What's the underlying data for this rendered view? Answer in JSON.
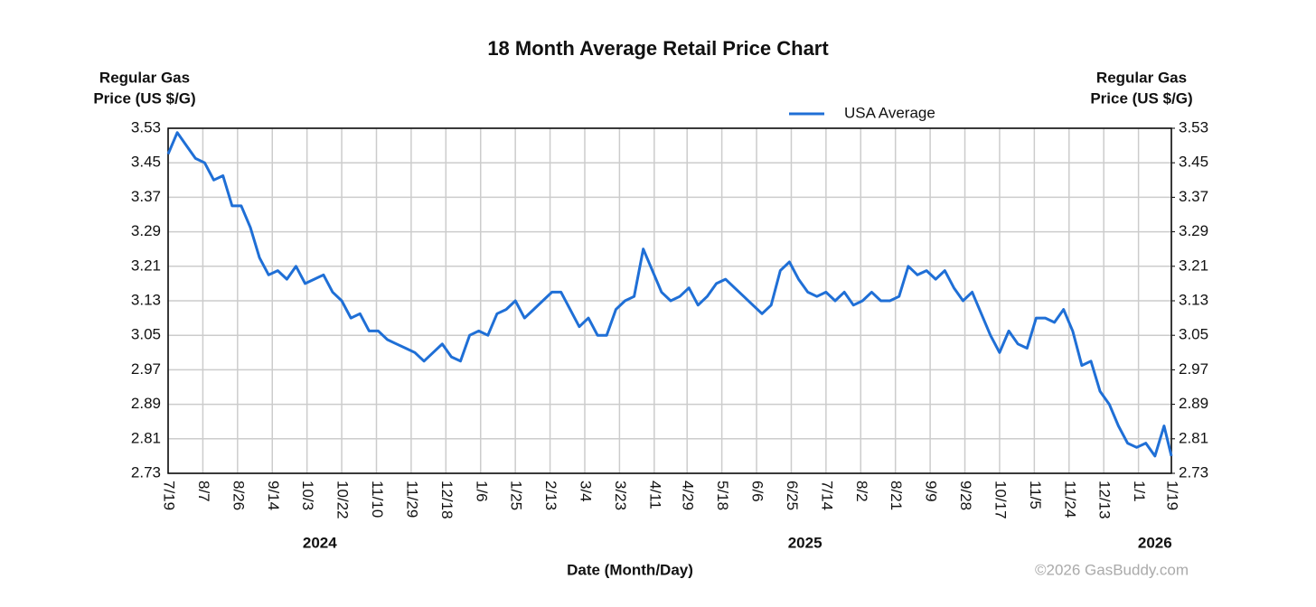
{
  "chart_data": {
    "type": "line",
    "title": "18 Month Average Retail Price Chart",
    "y_label": [
      "Regular Gas",
      "Price (US $/G)"
    ],
    "y2_label": [
      "Regular Gas",
      "Price (US $/G)"
    ],
    "x_label": "Date (Month/Day)",
    "x_year_labels": [
      "2024",
      "2025",
      "2026"
    ],
    "credit": "©2026 GasBuddy.com",
    "legend": "top",
    "grid": true,
    "x": [
      "2024-07-19",
      "2024-07-24",
      "2024-07-29",
      "2024-08-03",
      "2024-08-08",
      "2024-08-13",
      "2024-08-18",
      "2024-08-23",
      "2024-08-28",
      "2024-09-02",
      "2024-09-07",
      "2024-09-12",
      "2024-09-17",
      "2024-09-22",
      "2024-09-27",
      "2024-10-02",
      "2024-10-07",
      "2024-10-12",
      "2024-10-17",
      "2024-10-22",
      "2024-10-27",
      "2024-11-01",
      "2024-11-06",
      "2024-11-11",
      "2024-11-16",
      "2024-11-21",
      "2024-11-26",
      "2024-12-01",
      "2024-12-06",
      "2024-12-11",
      "2024-12-16",
      "2024-12-21",
      "2024-12-26",
      "2024-12-31",
      "2025-01-05",
      "2025-01-10",
      "2025-01-15",
      "2025-01-20",
      "2025-01-25",
      "2025-01-30",
      "2025-02-04",
      "2025-02-09",
      "2025-02-14",
      "2025-02-19",
      "2025-02-24",
      "2025-03-01",
      "2025-03-06",
      "2025-03-11",
      "2025-03-16",
      "2025-03-21",
      "2025-03-26",
      "2025-03-31",
      "2025-04-05",
      "2025-04-10",
      "2025-04-15",
      "2025-04-20",
      "2025-04-25",
      "2025-04-30",
      "2025-05-05",
      "2025-05-10",
      "2025-05-15",
      "2025-05-20",
      "2025-05-25",
      "2025-05-30",
      "2025-06-04",
      "2025-06-09",
      "2025-06-14",
      "2025-06-19",
      "2025-06-24",
      "2025-06-29",
      "2025-07-04",
      "2025-07-09",
      "2025-07-14",
      "2025-07-19",
      "2025-07-24",
      "2025-07-29",
      "2025-08-03",
      "2025-08-08",
      "2025-08-13",
      "2025-08-18",
      "2025-08-23",
      "2025-08-28",
      "2025-09-02",
      "2025-09-07",
      "2025-09-12",
      "2025-09-17",
      "2025-09-22",
      "2025-09-27",
      "2025-10-02",
      "2025-10-07",
      "2025-10-12",
      "2025-10-17",
      "2025-10-22",
      "2025-10-27",
      "2025-11-01",
      "2025-11-06",
      "2025-11-11",
      "2025-11-16",
      "2025-11-21",
      "2025-11-26",
      "2025-12-01",
      "2025-12-06",
      "2025-12-11",
      "2025-12-16",
      "2025-12-21",
      "2025-12-26",
      "2025-12-31",
      "2026-01-05",
      "2026-01-10",
      "2026-01-15",
      "2026-01-19"
    ],
    "series": [
      {
        "name": "USA Average",
        "color": "#1f6fd6",
        "values": [
          3.47,
          3.52,
          3.49,
          3.46,
          3.45,
          3.41,
          3.42,
          3.35,
          3.35,
          3.3,
          3.23,
          3.19,
          3.2,
          3.18,
          3.21,
          3.17,
          3.18,
          3.19,
          3.15,
          3.13,
          3.09,
          3.1,
          3.06,
          3.06,
          3.04,
          3.03,
          3.02,
          3.01,
          2.99,
          3.01,
          3.03,
          3.0,
          2.99,
          3.05,
          3.06,
          3.05,
          3.1,
          3.11,
          3.13,
          3.09,
          3.11,
          3.13,
          3.15,
          3.15,
          3.11,
          3.07,
          3.09,
          3.05,
          3.05,
          3.11,
          3.13,
          3.14,
          3.25,
          3.2,
          3.15,
          3.13,
          3.14,
          3.16,
          3.12,
          3.14,
          3.17,
          3.18,
          3.16,
          3.14,
          3.12,
          3.1,
          3.12,
          3.2,
          3.22,
          3.18,
          3.15,
          3.14,
          3.15,
          3.13,
          3.15,
          3.12,
          3.13,
          3.15,
          3.13,
          3.13,
          3.14,
          3.21,
          3.19,
          3.2,
          3.18,
          3.2,
          3.16,
          3.13,
          3.15,
          3.1,
          3.05,
          3.01,
          3.06,
          3.03,
          3.02,
          3.09,
          3.09,
          3.08,
          3.11,
          3.06,
          2.98,
          2.99,
          2.92,
          2.89,
          2.84,
          2.8,
          2.79,
          2.8,
          2.77,
          2.84,
          2.77
        ]
      }
    ],
    "xlim": [
      "2024-07-19",
      "2026-01-19"
    ],
    "xticks": [
      {
        "value": "2024-07-19",
        "label": "7/19"
      },
      {
        "value": "2024-08-07",
        "label": "8/7"
      },
      {
        "value": "2024-08-26",
        "label": "8/26"
      },
      {
        "value": "2024-09-14",
        "label": "9/14"
      },
      {
        "value": "2024-10-03",
        "label": "10/3"
      },
      {
        "value": "2024-10-22",
        "label": "10/22"
      },
      {
        "value": "2024-11-10",
        "label": "11/10"
      },
      {
        "value": "2024-11-29",
        "label": "11/29"
      },
      {
        "value": "2024-12-18",
        "label": "12/18"
      },
      {
        "value": "2025-01-06",
        "label": "1/6"
      },
      {
        "value": "2025-01-25",
        "label": "1/25"
      },
      {
        "value": "2025-02-13",
        "label": "2/13"
      },
      {
        "value": "2025-03-04",
        "label": "3/4"
      },
      {
        "value": "2025-03-23",
        "label": "3/23"
      },
      {
        "value": "2025-04-11",
        "label": "4/11"
      },
      {
        "value": "2025-04-29",
        "label": "4/29"
      },
      {
        "value": "2025-05-18",
        "label": "5/18"
      },
      {
        "value": "2025-06-06",
        "label": "6/6"
      },
      {
        "value": "2025-06-25",
        "label": "6/25"
      },
      {
        "value": "2025-07-14",
        "label": "7/14"
      },
      {
        "value": "2025-08-02",
        "label": "8/2"
      },
      {
        "value": "2025-08-21",
        "label": "8/21"
      },
      {
        "value": "2025-09-09",
        "label": "9/9"
      },
      {
        "value": "2025-09-28",
        "label": "9/28"
      },
      {
        "value": "2025-10-17",
        "label": "10/17"
      },
      {
        "value": "2025-11-05",
        "label": "11/5"
      },
      {
        "value": "2025-11-24",
        "label": "11/24"
      },
      {
        "value": "2025-12-13",
        "label": "12/13"
      },
      {
        "value": "2026-01-01",
        "label": "1/1"
      },
      {
        "value": "2026-01-19",
        "label": "1/19"
      }
    ],
    "ylim": [
      2.73,
      3.53
    ],
    "yticks": [
      3.53,
      3.45,
      3.37,
      3.29,
      3.21,
      3.13,
      3.05,
      2.97,
      2.89,
      2.81,
      2.73
    ],
    "y2lim": [
      2.73,
      3.53
    ],
    "y2ticks": [
      3.53,
      3.45,
      3.37,
      3.29,
      3.21,
      3.13,
      3.05,
      2.97,
      2.89,
      2.81,
      2.73
    ]
  }
}
